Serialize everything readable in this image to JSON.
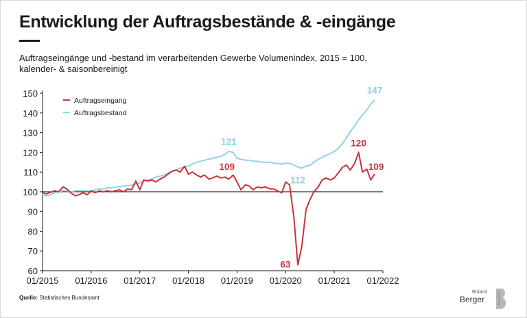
{
  "title": "Entwicklung der Auftragsbestände & -eingänge",
  "subtitle": "Auftragseingänge und -bestand im verarbeitenden Gewerbe Volumenindex, 2015 = 100, kalender- & saisonbereinigt",
  "source_label": "Quelle:",
  "source_text": "Statistisches Bundesamt",
  "logo": {
    "line1": "Roland",
    "line2": "Berger"
  },
  "colors": {
    "eingang": "#c8323a",
    "bestand": "#8fd3e3",
    "axis": "#1a1a1a"
  },
  "chart_data": {
    "type": "line",
    "title": "Entwicklung der Auftragsbestände & -eingänge",
    "xlabel": "",
    "ylabel": "",
    "ylim": [
      60,
      150
    ],
    "yticks": [
      60,
      70,
      80,
      90,
      100,
      110,
      120,
      130,
      140,
      150
    ],
    "xlim": [
      2015.0,
      2022.0
    ],
    "xticks": [
      {
        "x": 2015.0,
        "label": "01/2015"
      },
      {
        "x": 2016.0,
        "label": "01/2016"
      },
      {
        "x": 2017.0,
        "label": "01/2017"
      },
      {
        "x": 2018.0,
        "label": "01/2018"
      },
      {
        "x": 2019.0,
        "label": "01/2019"
      },
      {
        "x": 2020.0,
        "label": "01/2020"
      },
      {
        "x": 2021.0,
        "label": "01/2021"
      },
      {
        "x": 2022.0,
        "label": "01/2022"
      }
    ],
    "reference_line": 100,
    "legend": {
      "position": "top-left"
    },
    "series": [
      {
        "name": "Auftragseingang",
        "color": "#c8323a",
        "points": [
          [
            2015.0,
            99.5
          ],
          [
            2015.08,
            99.0
          ],
          [
            2015.17,
            99.8
          ],
          [
            2015.25,
            100.5
          ],
          [
            2015.33,
            100.0
          ],
          [
            2015.42,
            102.5
          ],
          [
            2015.5,
            101.5
          ],
          [
            2015.58,
            99.5
          ],
          [
            2015.67,
            98.0
          ],
          [
            2015.75,
            98.5
          ],
          [
            2015.83,
            99.5
          ],
          [
            2015.92,
            98.5
          ],
          [
            2016.0,
            100.5
          ],
          [
            2016.08,
            99.5
          ],
          [
            2016.17,
            100.5
          ],
          [
            2016.25,
            100.0
          ],
          [
            2016.33,
            100.5
          ],
          [
            2016.42,
            100.0
          ],
          [
            2016.5,
            100.5
          ],
          [
            2016.58,
            101.0
          ],
          [
            2016.67,
            100.0
          ],
          [
            2016.75,
            101.5
          ],
          [
            2016.83,
            101.0
          ],
          [
            2016.92,
            105.5
          ],
          [
            2017.0,
            101.0
          ],
          [
            2017.08,
            106.0
          ],
          [
            2017.17,
            105.5
          ],
          [
            2017.25,
            106.0
          ],
          [
            2017.33,
            105.0
          ],
          [
            2017.42,
            106.5
          ],
          [
            2017.5,
            107.5
          ],
          [
            2017.58,
            109.0
          ],
          [
            2017.67,
            110.5
          ],
          [
            2017.75,
            111.0
          ],
          [
            2017.83,
            110.0
          ],
          [
            2017.92,
            113.0
          ],
          [
            2018.0,
            109.0
          ],
          [
            2018.08,
            110.0
          ],
          [
            2018.17,
            108.5
          ],
          [
            2018.25,
            107.5
          ],
          [
            2018.33,
            108.5
          ],
          [
            2018.42,
            106.5
          ],
          [
            2018.5,
            107.0
          ],
          [
            2018.58,
            108.0
          ],
          [
            2018.67,
            107.0
          ],
          [
            2018.75,
            107.5
          ],
          [
            2018.83,
            106.5
          ],
          [
            2018.92,
            108.5
          ],
          [
            2019.0,
            105.0
          ],
          [
            2019.08,
            101.0
          ],
          [
            2019.17,
            103.5
          ],
          [
            2019.25,
            103.0
          ],
          [
            2019.33,
            101.0
          ],
          [
            2019.42,
            102.5
          ],
          [
            2019.5,
            102.0
          ],
          [
            2019.58,
            102.5
          ],
          [
            2019.67,
            101.5
          ],
          [
            2019.75,
            101.5
          ],
          [
            2019.83,
            100.5
          ],
          [
            2019.92,
            99.5
          ],
          [
            2020.0,
            105.0
          ],
          [
            2020.08,
            103.5
          ],
          [
            2020.17,
            87.0
          ],
          [
            2020.25,
            63.0
          ],
          [
            2020.33,
            72.0
          ],
          [
            2020.42,
            91.0
          ],
          [
            2020.5,
            96.0
          ],
          [
            2020.58,
            100.0
          ],
          [
            2020.67,
            102.5
          ],
          [
            2020.75,
            106.0
          ],
          [
            2020.83,
            107.0
          ],
          [
            2020.92,
            106.0
          ],
          [
            2021.0,
            107.0
          ],
          [
            2021.08,
            109.5
          ],
          [
            2021.17,
            112.5
          ],
          [
            2021.25,
            113.5
          ],
          [
            2021.33,
            111.0
          ],
          [
            2021.42,
            114.5
          ],
          [
            2021.5,
            120.0
          ],
          [
            2021.58,
            110.0
          ],
          [
            2021.67,
            111.5
          ],
          [
            2021.75,
            106.0
          ],
          [
            2021.83,
            109.0
          ]
        ]
      },
      {
        "name": "Auftragsbestand",
        "color": "#8fd3e3",
        "points": [
          [
            2015.0,
            98.5
          ],
          [
            2015.08,
            98.0
          ],
          [
            2015.17,
            98.5
          ],
          [
            2015.25,
            99.5
          ],
          [
            2015.33,
            100.0
          ],
          [
            2015.42,
            100.5
          ],
          [
            2015.5,
            100.5
          ],
          [
            2015.58,
            100.0
          ],
          [
            2015.67,
            100.5
          ],
          [
            2015.75,
            100.5
          ],
          [
            2015.83,
            100.5
          ],
          [
            2015.92,
            100.5
          ],
          [
            2016.0,
            100.5
          ],
          [
            2016.08,
            101.0
          ],
          [
            2016.17,
            101.5
          ],
          [
            2016.25,
            101.5
          ],
          [
            2016.33,
            102.0
          ],
          [
            2016.42,
            102.0
          ],
          [
            2016.5,
            102.5
          ],
          [
            2016.58,
            102.5
          ],
          [
            2016.67,
            103.0
          ],
          [
            2016.75,
            103.0
          ],
          [
            2016.83,
            103.5
          ],
          [
            2016.92,
            104.0
          ],
          [
            2017.0,
            104.5
          ],
          [
            2017.08,
            105.5
          ],
          [
            2017.17,
            106.0
          ],
          [
            2017.25,
            106.5
          ],
          [
            2017.33,
            107.5
          ],
          [
            2017.42,
            108.0
          ],
          [
            2017.5,
            108.5
          ],
          [
            2017.58,
            109.5
          ],
          [
            2017.67,
            110.5
          ],
          [
            2017.75,
            111.0
          ],
          [
            2017.83,
            112.0
          ],
          [
            2017.92,
            112.5
          ],
          [
            2018.0,
            113.0
          ],
          [
            2018.08,
            114.0
          ],
          [
            2018.17,
            115.0
          ],
          [
            2018.25,
            115.5
          ],
          [
            2018.33,
            116.0
          ],
          [
            2018.42,
            116.5
          ],
          [
            2018.5,
            117.0
          ],
          [
            2018.58,
            117.5
          ],
          [
            2018.67,
            118.0
          ],
          [
            2018.75,
            119.0
          ],
          [
            2018.83,
            120.5
          ],
          [
            2018.92,
            120.0
          ],
          [
            2019.0,
            117.0
          ],
          [
            2019.08,
            116.5
          ],
          [
            2019.17,
            116.0
          ],
          [
            2019.25,
            116.0
          ],
          [
            2019.33,
            115.5
          ],
          [
            2019.42,
            115.5
          ],
          [
            2019.5,
            115.0
          ],
          [
            2019.58,
            115.0
          ],
          [
            2019.67,
            115.0
          ],
          [
            2019.75,
            114.5
          ],
          [
            2019.83,
            114.5
          ],
          [
            2019.92,
            114.0
          ],
          [
            2020.0,
            114.5
          ],
          [
            2020.08,
            114.5
          ],
          [
            2020.17,
            113.5
          ],
          [
            2020.25,
            112.5
          ],
          [
            2020.33,
            112.0
          ],
          [
            2020.42,
            113.0
          ],
          [
            2020.5,
            113.5
          ],
          [
            2020.58,
            115.0
          ],
          [
            2020.67,
            116.5
          ],
          [
            2020.75,
            117.5
          ],
          [
            2020.83,
            118.5
          ],
          [
            2020.92,
            119.5
          ],
          [
            2021.0,
            120.5
          ],
          [
            2021.08,
            122.0
          ],
          [
            2021.17,
            124.5
          ],
          [
            2021.25,
            127.5
          ],
          [
            2021.33,
            130.5
          ],
          [
            2021.42,
            133.5
          ],
          [
            2021.5,
            136.5
          ],
          [
            2021.58,
            139.0
          ],
          [
            2021.67,
            141.5
          ],
          [
            2021.75,
            144.5
          ],
          [
            2021.83,
            146.5
          ]
        ]
      }
    ],
    "annotations": [
      {
        "text": "121",
        "series": "Auftragsbestand",
        "x": 2018.83,
        "y": 121
      },
      {
        "text": "112",
        "series": "Auftragsbestand",
        "x": 2020.25,
        "y": 112
      },
      {
        "text": "147",
        "series": "Auftragsbestand",
        "x": 2021.83,
        "y": 147
      },
      {
        "text": "109",
        "series": "Auftragseingang",
        "x": 2018.92,
        "y": 109
      },
      {
        "text": "63",
        "series": "Auftragseingang",
        "x": 2020.25,
        "y": 63
      },
      {
        "text": "120",
        "series": "Auftragseingang",
        "x": 2021.5,
        "y": 120
      },
      {
        "text": "109",
        "series": "Auftragseingang",
        "x": 2021.83,
        "y": 109
      }
    ]
  }
}
